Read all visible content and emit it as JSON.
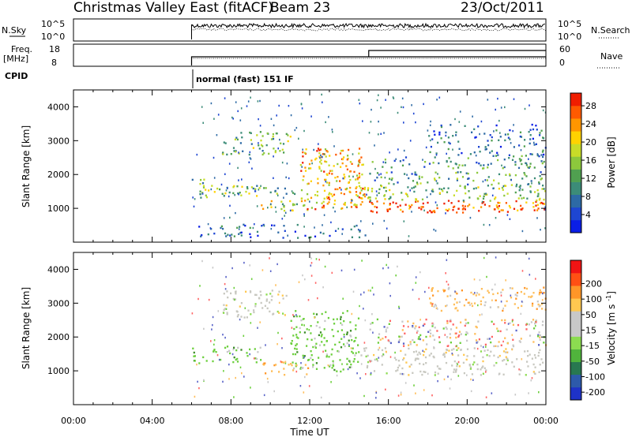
{
  "header": {
    "station": "Christmas Valley East (fitACF)",
    "beam": "Beam 23",
    "date": "23/Oct/2011"
  },
  "strips": {
    "nsky_label": "N.Sky",
    "nsky_ticks": [
      "10^5",
      "10^0"
    ],
    "nsearch_label": "N.Search",
    "nsearch_ticks": [
      "10^5",
      "10^0"
    ],
    "freq_label": [
      "Freq.",
      "[MHz]"
    ],
    "freq_ticks": [
      "18",
      "8"
    ],
    "nave_label": "Nave",
    "nave_ticks": [
      "60",
      "0"
    ],
    "cpid_label": "CPID",
    "cpid_value": "normal (fast) 151 IF"
  },
  "chart_data": [
    {
      "type": "heatmap",
      "title": "",
      "ylabel": "Slant Range [km]",
      "xlabel": "",
      "x_range_hours": [
        0,
        24
      ],
      "ylim": [
        0,
        4500
      ],
      "y_ticks": [
        1000,
        2000,
        3000,
        4000
      ],
      "colorbar": {
        "label": "Power [dB]",
        "ticks": [
          "28",
          "24",
          "20",
          "16",
          "12",
          "8",
          "4"
        ],
        "colors": [
          "#0a1ee6",
          "#1e46d2",
          "#2d6aa5",
          "#3c8c78",
          "#50a050",
          "#8cc83c",
          "#c8dc28",
          "#ffd200",
          "#ff9600",
          "#ff5a00",
          "#f01e00"
        ]
      },
      "scatter_regions": [
        {
          "t0": 6.0,
          "t1": 6.6,
          "r0": 1200,
          "r1": 1900,
          "level": 0.45
        },
        {
          "t0": 6.5,
          "t1": 9.5,
          "r0": 1300,
          "r1": 1700,
          "level": 0.55
        },
        {
          "t0": 9.0,
          "t1": 11.5,
          "r0": 1450,
          "r1": 1750,
          "level": 0.4
        },
        {
          "t0": 7.5,
          "t1": 11.0,
          "r0": 2600,
          "r1": 3300,
          "level": 0.5
        },
        {
          "t0": 9.5,
          "t1": 12.0,
          "r0": 950,
          "r1": 1250,
          "level": 0.6
        },
        {
          "t0": 11.5,
          "t1": 14.8,
          "r0": 1000,
          "r1": 2800,
          "level": 0.8
        },
        {
          "t0": 14.3,
          "t1": 15.0,
          "r0": 1300,
          "r1": 2000,
          "level": 0.7
        },
        {
          "t0": 15.0,
          "t1": 24.0,
          "r0": 900,
          "r1": 1250,
          "level": 0.95
        },
        {
          "t0": 15.0,
          "t1": 24.0,
          "r0": 1250,
          "r1": 1700,
          "level": 0.55
        },
        {
          "t0": 15.0,
          "t1": 24.0,
          "r0": 1700,
          "r1": 2100,
          "level": 0.4
        },
        {
          "t0": 15.0,
          "t1": 24.0,
          "r0": 2200,
          "r1": 2600,
          "level": 0.35
        },
        {
          "t0": 18.0,
          "t1": 24.0,
          "r0": 2600,
          "r1": 3500,
          "level": 0.25
        },
        {
          "t0": 6.0,
          "t1": 15.0,
          "r0": 150,
          "r1": 550,
          "level": 0.2
        }
      ]
    },
    {
      "type": "heatmap",
      "title": "",
      "ylabel": "Slant Range [km]",
      "xlabel": "Time UT",
      "x_range_hours": [
        0,
        24
      ],
      "x_tick_labels": [
        "00:00",
        "04:00",
        "08:00",
        "12:00",
        "16:00",
        "20:00",
        "00:00"
      ],
      "ylim": [
        0,
        4500
      ],
      "y_ticks": [
        1000,
        2000,
        3000,
        4000
      ],
      "colorbar": {
        "label": "Velocity [m s-1]",
        "ticks": [
          "200",
          "100",
          "50",
          "15",
          "-15",
          "-50",
          "-100",
          "-200"
        ],
        "colors": [
          "#1e32c8",
          "#2d5aaa",
          "#287850",
          "#50b43c",
          "#8cdc50",
          "#c8c8c8",
          "#c8c8c8",
          "#ffc850",
          "#ff9628",
          "#ff5014",
          "#f01414"
        ]
      },
      "scatter_regions": [
        {
          "t0": 6.0,
          "t1": 9.5,
          "r0": 1250,
          "r1": 1750,
          "kind": "green"
        },
        {
          "t0": 7.5,
          "t1": 11.0,
          "r0": 2600,
          "r1": 3400,
          "kind": "gray"
        },
        {
          "t0": 11.0,
          "t1": 14.5,
          "r0": 1000,
          "r1": 2800,
          "kind": "green"
        },
        {
          "t0": 9.5,
          "t1": 12.0,
          "r0": 900,
          "r1": 1300,
          "kind": "orange"
        },
        {
          "t0": 14.5,
          "t1": 24.0,
          "r0": 900,
          "r1": 1700,
          "kind": "gray"
        },
        {
          "t0": 15.0,
          "t1": 24.0,
          "r0": 1750,
          "r1": 2550,
          "kind": "mixed"
        },
        {
          "t0": 18.0,
          "t1": 24.0,
          "r0": 2800,
          "r1": 3500,
          "kind": "orange"
        }
      ]
    }
  ]
}
